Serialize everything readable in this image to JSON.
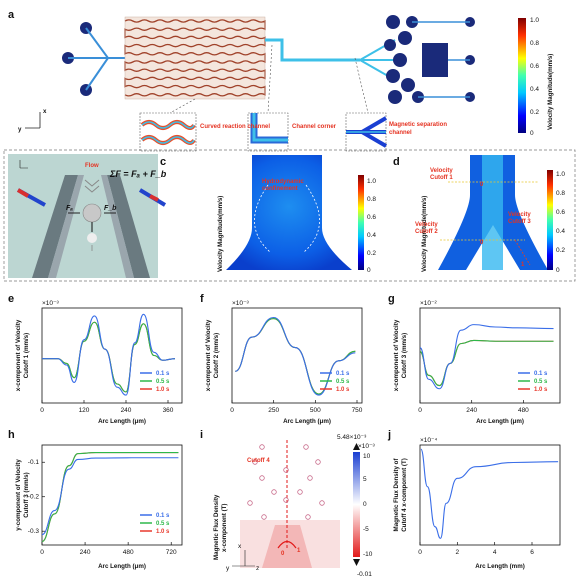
{
  "panels": {
    "a": "a",
    "b": "b",
    "c": "c",
    "d": "d",
    "e": "e",
    "f": "f",
    "g": "g",
    "h": "h",
    "i": "i",
    "j": "j"
  },
  "panel_a": {
    "insets": [
      "Curved reaction channel",
      "Channel corner",
      "Magnetic separation channel"
    ],
    "colorbar_title": "Velocity Magnitude(mm/s)",
    "colorbar_ticks": [
      "1.0",
      "0.8",
      "0.6",
      "0.4",
      "0.2",
      "0"
    ],
    "axis_x": "x",
    "axis_y": "y"
  },
  "panel_b": {
    "flow": "Flow",
    "formula": "ΣF = Fₐ + F_b",
    "fa": "Fₐ",
    "fb": "F_b"
  },
  "panel_c": {
    "annotation": "Hydrodynamic confinement",
    "ylabel": "Velocity Magnitude(mm/s)",
    "ticks": [
      "1.0",
      "0.8",
      "0.6",
      "0.4",
      "0.2",
      "0"
    ]
  },
  "panel_d": {
    "cutoff1": "Velocity Cutoff 1",
    "cutoff2": "Velocity Cutoff 2",
    "cutoff3": "Velocity Cutoff 3",
    "ylabel": "Velocity Magnitude(mm/s)",
    "ticks": [
      "1.0",
      "0.8",
      "0.6",
      "0.4",
      "0.2",
      "0"
    ],
    "mark0": "0",
    "mark1": "1"
  },
  "panel_i": {
    "ylabel1": "Magnetic Flux Density",
    "ylabel2": "x-component (T)",
    "cutoff": "Cutoff 4",
    "max": "5.48×10⁻³",
    "exp": "×10⁻³",
    "ticks": [
      "10",
      "5",
      "0",
      "-5",
      "-10"
    ],
    "min": "-0.01",
    "mark0": "0",
    "mark1": "1",
    "ax_x": "x",
    "ax_y": "y",
    "ax_z": "z"
  },
  "chart_data": [
    {
      "panel": "e",
      "type": "line",
      "ylabel": "x-component of Velocity Cutoff 1 (mm/s)",
      "xlabel": "Arc Length (μm)",
      "yexp": "×10⁻³",
      "xticks": [
        "0",
        "120",
        "240",
        "360"
      ],
      "xlim": [
        0,
        400
      ],
      "ylim": [
        -1.4,
        1.6
      ],
      "series": [
        {
          "name": "0.1 s",
          "color": "#3a6ee8",
          "points": [
            [
              0,
              0
            ],
            [
              45,
              0
            ],
            [
              70,
              -0.2
            ],
            [
              92,
              -0.75
            ],
            [
              120,
              0.6
            ],
            [
              150,
              1.35
            ],
            [
              180,
              0.3
            ],
            [
              215,
              -0.9
            ],
            [
              240,
              -1.15
            ],
            [
              265,
              0.5
            ],
            [
              290,
              1.4
            ],
            [
              320,
              0.2
            ],
            [
              345,
              -0.05
            ],
            [
              380,
              0
            ]
          ]
        },
        {
          "name": "0.5 s",
          "color": "#2eb84a",
          "points": [
            [
              0,
              0
            ],
            [
              45,
              0
            ],
            [
              70,
              -0.15
            ],
            [
              92,
              -0.6
            ],
            [
              120,
              0.55
            ],
            [
              150,
              1.15
            ],
            [
              180,
              0.3
            ],
            [
              215,
              -0.8
            ],
            [
              240,
              -1.05
            ],
            [
              265,
              0.45
            ],
            [
              290,
              1.1
            ],
            [
              320,
              0.1
            ],
            [
              345,
              -0.05
            ],
            [
              380,
              0
            ]
          ]
        },
        {
          "name": "1.0 s",
          "color": "#e8392c",
          "points": [
            [
              0,
              0
            ],
            [
              45,
              0
            ],
            [
              70,
              -0.15
            ],
            [
              92,
              -0.6
            ],
            [
              120,
              0.55
            ],
            [
              150,
              1.15
            ],
            [
              180,
              0.3
            ],
            [
              215,
              -0.8
            ],
            [
              240,
              -1.05
            ],
            [
              265,
              0.45
            ],
            [
              290,
              1.1
            ],
            [
              320,
              0.1
            ],
            [
              345,
              -0.05
            ],
            [
              380,
              0
            ]
          ]
        }
      ]
    },
    {
      "panel": "f",
      "type": "line",
      "ylabel": "x-component of Velocity Cutoff 2 (mm/s)",
      "xlabel": "Arc Length (μm)",
      "yexp": "×10⁻³",
      "xticks": [
        "0",
        "250",
        "500",
        "750"
      ],
      "xlim": [
        0,
        780
      ],
      "ylim": [
        -9,
        9
      ],
      "series": [
        {
          "name": "0.1 s",
          "color": "#3a6ee8",
          "points": [
            [
              20,
              -3
            ],
            [
              120,
              3.5
            ],
            [
              250,
              7.2
            ],
            [
              380,
              1.5
            ],
            [
              520,
              -7.5
            ],
            [
              640,
              -1
            ],
            [
              740,
              0.5
            ]
          ]
        },
        {
          "name": "0.5 s",
          "color": "#2eb84a",
          "points": [
            [
              20,
              -3
            ],
            [
              120,
              3.5
            ],
            [
              250,
              7
            ],
            [
              380,
              1.5
            ],
            [
              520,
              -7.3
            ],
            [
              640,
              -1
            ],
            [
              740,
              0.8
            ]
          ]
        },
        {
          "name": "1.0 s",
          "color": "#e8392c",
          "points": [
            [
              20,
              -3
            ],
            [
              120,
              3.5
            ],
            [
              250,
              7
            ],
            [
              380,
              1.5
            ],
            [
              520,
              -7.3
            ],
            [
              640,
              -1
            ],
            [
              740,
              0.8
            ]
          ]
        }
      ]
    },
    {
      "panel": "g",
      "type": "line",
      "ylabel": "x-component of Velocity Cutoff 3 (mm/s)",
      "xlabel": "Arc Length (μm)",
      "yexp": "×10⁻²",
      "xticks": [
        "0",
        "240",
        "480"
      ],
      "xlim": [
        0,
        650
      ],
      "ylim": [
        -6,
        6
      ],
      "series": [
        {
          "name": "0.1 s",
          "color": "#3a6ee8",
          "points": [
            [
              0,
              1
            ],
            [
              40,
              -3
            ],
            [
              90,
              -4.2
            ],
            [
              140,
              -1
            ],
            [
              190,
              3.2
            ],
            [
              250,
              3.9
            ],
            [
              350,
              3.6
            ],
            [
              450,
              3.5
            ],
            [
              620,
              3.4
            ]
          ]
        },
        {
          "name": "0.5 s",
          "color": "#2eb84a",
          "points": [
            [
              0,
              0.5
            ],
            [
              40,
              -2.5
            ],
            [
              90,
              -3.8
            ],
            [
              140,
              -1
            ],
            [
              190,
              1.5
            ],
            [
              250,
              1.9
            ],
            [
              350,
              1.8
            ],
            [
              450,
              1.8
            ],
            [
              620,
              1.8
            ]
          ]
        },
        {
          "name": "1.0 s",
          "color": "#e8392c",
          "points": [
            [
              0,
              0.5
            ],
            [
              40,
              -2.5
            ],
            [
              90,
              -3.8
            ],
            [
              140,
              -1
            ],
            [
              190,
              1.5
            ],
            [
              250,
              1.9
            ],
            [
              350,
              1.8
            ],
            [
              450,
              1.8
            ],
            [
              620,
              1.8
            ]
          ]
        }
      ]
    },
    {
      "panel": "h",
      "type": "line",
      "ylabel": "y-component of Velocity Cutoff 3 (mm/s)",
      "xlabel": "Arc Length (μm)",
      "yticks": [
        "-0.1",
        "-0.2",
        "-0.3"
      ],
      "xticks": [
        "0",
        "240",
        "480",
        "720"
      ],
      "xlim": [
        0,
        780
      ],
      "ylim": [
        -0.34,
        -0.05
      ],
      "series": [
        {
          "name": "0.1 s",
          "color": "#3a6ee8",
          "points": [
            [
              0,
              -0.31
            ],
            [
              70,
              -0.24
            ],
            [
              150,
              -0.12
            ],
            [
              200,
              -0.092
            ],
            [
              300,
              -0.088
            ],
            [
              500,
              -0.087
            ],
            [
              760,
              -0.087
            ]
          ]
        },
        {
          "name": "0.5 s",
          "color": "#2eb84a",
          "points": [
            [
              0,
              -0.33
            ],
            [
              70,
              -0.25
            ],
            [
              150,
              -0.11
            ],
            [
              200,
              -0.075
            ],
            [
              300,
              -0.072
            ],
            [
              500,
              -0.072
            ],
            [
              760,
              -0.072
            ]
          ]
        },
        {
          "name": "1.0 s",
          "color": "#e8392c",
          "points": [
            [
              0,
              -0.33
            ],
            [
              70,
              -0.25
            ],
            [
              150,
              -0.11
            ],
            [
              200,
              -0.075
            ],
            [
              300,
              -0.072
            ],
            [
              500,
              -0.072
            ],
            [
              760,
              -0.072
            ]
          ]
        }
      ]
    },
    {
      "panel": "j",
      "type": "line",
      "ylabel": "Magnetic Flux Density of Cutoff 4 x-component (T)",
      "xlabel": "Arc Length (mm)",
      "yexp": "×10⁻⁴",
      "xticks": [
        "0",
        "2",
        "4",
        "6"
      ],
      "xlim": [
        0,
        7.5
      ],
      "ylim": [
        -10,
        2
      ],
      "series": [
        {
          "name": "",
          "color": "#3a6ee8",
          "points": [
            [
              0.05,
              1.5
            ],
            [
              0.4,
              -3
            ],
            [
              0.8,
              -7.8
            ],
            [
              1.1,
              -9.2
            ],
            [
              1.4,
              -5
            ],
            [
              2,
              -2
            ],
            [
              3,
              -0.6
            ],
            [
              5,
              -0.1
            ],
            [
              7.4,
              0
            ]
          ]
        }
      ]
    }
  ]
}
